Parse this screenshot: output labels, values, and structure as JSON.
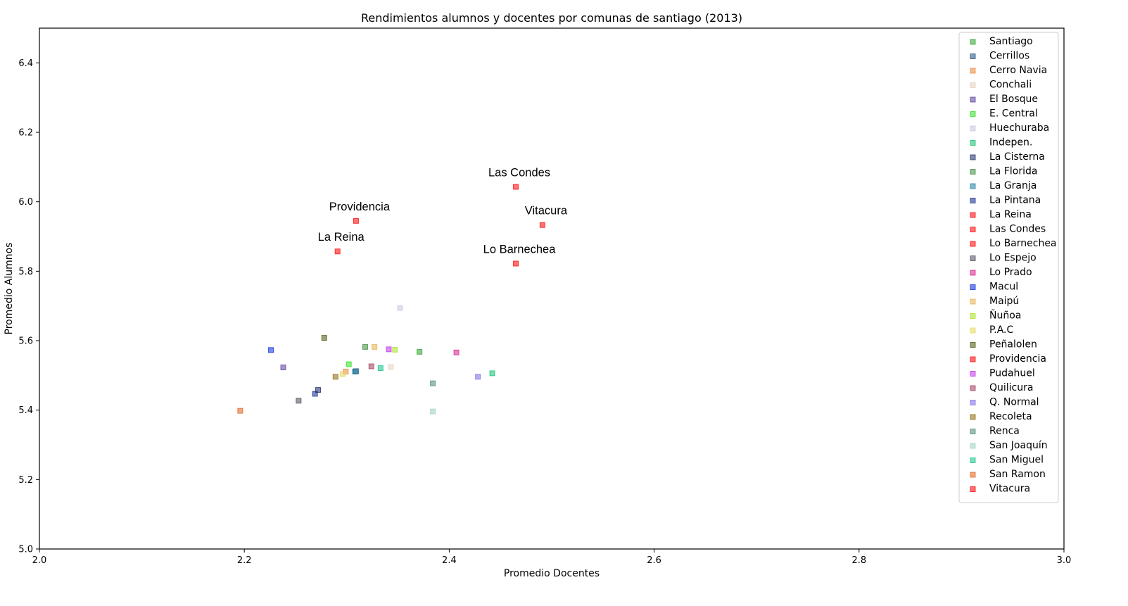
{
  "chart_data": {
    "type": "scatter",
    "title": "Rendimientos alumnos y docentes por comunas de santiago (2013)",
    "xlabel": "Promedio Docentes",
    "ylabel": "Promedio Alumnos",
    "xlim": [
      2.0,
      3.0
    ],
    "ylim": [
      5.0,
      6.5
    ],
    "xticks": [
      2.0,
      2.2,
      2.4,
      2.6,
      2.8,
      3.0
    ],
    "xtick_labels": [
      "2.0",
      "2.2",
      "2.4",
      "2.6",
      "2.8",
      "3.0"
    ],
    "yticks": [
      5.0,
      5.2,
      5.4,
      5.6,
      5.8,
      6.0,
      6.2,
      6.4
    ],
    "ytick_labels": [
      "5.0",
      "5.2",
      "5.4",
      "5.6",
      "5.8",
      "6.0",
      "6.2",
      "6.4"
    ],
    "grid": false,
    "legend_position": "top-right",
    "marker": "square",
    "marker_alpha": 0.55,
    "series": [
      {
        "name": "Santiago",
        "color": "#2ca02c",
        "x": 2.371,
        "y": 5.568
      },
      {
        "name": "Cerrillos",
        "color": "#1f4e79",
        "x": 2.309,
        "y": 5.512
      },
      {
        "name": "Cerro Navia",
        "color": "#e8883a",
        "x": 2.299,
        "y": 5.511
      },
      {
        "name": "Conchali",
        "color": "#e3d2bd",
        "x": 2.343,
        "y": 5.524
      },
      {
        "name": "El Bosque",
        "color": "#5b3a98",
        "x": 2.238,
        "y": 5.523
      },
      {
        "name": "E. Central",
        "color": "#33dd22",
        "x": 2.302,
        "y": 5.532
      },
      {
        "name": "Huechuraba",
        "color": "#c6c6de",
        "x": 2.352,
        "y": 5.694
      },
      {
        "name": "Indepen.",
        "color": "#10c070",
        "x": 2.442,
        "y": 5.506
      },
      {
        "name": "La Cisterna",
        "color": "#1e2a66",
        "x": 2.272,
        "y": 5.458
      },
      {
        "name": "La Florida",
        "color": "#3c8c3c",
        "x": 2.318,
        "y": 5.582
      },
      {
        "name": "La Granja",
        "color": "#1a7fa0",
        "x": 2.308,
        "y": 5.511
      },
      {
        "name": "La Pintana",
        "color": "#102a90",
        "x": 2.269,
        "y": 5.447
      },
      {
        "name": "La Reina",
        "color": "#ff0000",
        "x": 2.291,
        "y": 5.857
      },
      {
        "name": "Las Condes",
        "color": "#ff0000",
        "x": 2.465,
        "y": 6.043
      },
      {
        "name": "Lo Barnechea",
        "color": "#ff0000",
        "x": 2.465,
        "y": 5.822
      },
      {
        "name": "Lo Espejo",
        "color": "#4a4a5a",
        "x": 2.253,
        "y": 5.427
      },
      {
        "name": "Lo Prado",
        "color": "#d81b8a",
        "x": 2.407,
        "y": 5.566
      },
      {
        "name": "Macul",
        "color": "#0a2ad8",
        "x": 2.226,
        "y": 5.573
      },
      {
        "name": "Maipú",
        "color": "#e8b050",
        "x": 2.327,
        "y": 5.582
      },
      {
        "name": "Ñuñoa",
        "color": "#a8e020",
        "x": 2.347,
        "y": 5.574
      },
      {
        "name": "P.A.C",
        "color": "#e6d85c",
        "x": 2.296,
        "y": 5.504
      },
      {
        "name": "Peñalolen",
        "color": "#465a0a",
        "x": 2.278,
        "y": 5.608
      },
      {
        "name": "Providencia",
        "color": "#ff0000",
        "x": 2.309,
        "y": 5.945
      },
      {
        "name": "Pudahuel",
        "color": "#c230e8",
        "x": 2.341,
        "y": 5.575
      },
      {
        "name": "Quilicura",
        "color": "#a23a58",
        "x": 2.324,
        "y": 5.526
      },
      {
        "name": "Q. Normal",
        "color": "#7a6ae8",
        "x": 2.428,
        "y": 5.496
      },
      {
        "name": "Recoleta",
        "color": "#8c6a0a",
        "x": 2.289,
        "y": 5.496
      },
      {
        "name": "Renca",
        "color": "#4a8a70",
        "x": 2.384,
        "y": 5.477
      },
      {
        "name": "San Joaquín",
        "color": "#9ed0c0",
        "x": 2.384,
        "y": 5.396
      },
      {
        "name": "San Miguel",
        "color": "#14c08a",
        "x": 2.333,
        "y": 5.521
      },
      {
        "name": "San Ramon",
        "color": "#e0601a",
        "x": 2.196,
        "y": 5.398
      },
      {
        "name": "Vitacura",
        "color": "#ff0000",
        "x": 2.491,
        "y": 5.933
      }
    ],
    "annotations": [
      {
        "text": "Las Condes",
        "x": 2.465,
        "y": 6.043
      },
      {
        "text": "Providencia",
        "x": 2.309,
        "y": 5.945
      },
      {
        "text": "Vitacura",
        "x": 2.491,
        "y": 5.933
      },
      {
        "text": "La Reina",
        "x": 2.291,
        "y": 5.857
      },
      {
        "text": "Lo Barnechea",
        "x": 2.465,
        "y": 5.822
      }
    ]
  }
}
